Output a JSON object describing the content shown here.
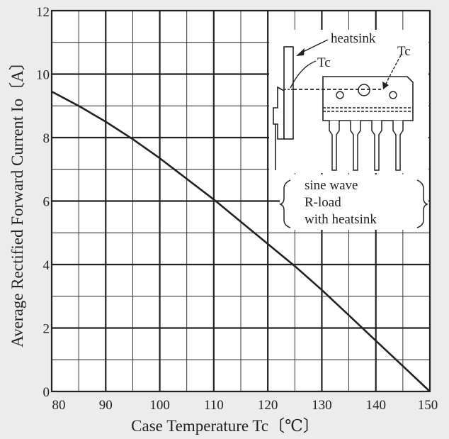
{
  "chart_data": {
    "type": "line",
    "xlabel": "Case Temperature Tc〔℃〕",
    "ylabel": "Average Rectified Forward Current Io〔A〕",
    "xlim": [
      80,
      150
    ],
    "ylim": [
      0,
      12
    ],
    "x_ticks": [
      80,
      90,
      100,
      110,
      120,
      130,
      140,
      150
    ],
    "y_ticks": [
      0,
      2,
      4,
      6,
      8,
      10,
      12
    ],
    "x_tick_labels": [
      "80",
      "90",
      "100",
      "110",
      "120",
      "130",
      "140",
      "150"
    ],
    "y_tick_labels": [
      "0",
      "2",
      "4",
      "6",
      "8",
      "10",
      "12"
    ],
    "grid": true,
    "minor_gridlines": {
      "x_step": 5,
      "y_step": 1
    },
    "series": [
      {
        "x": [
          80,
          85,
          90,
          95,
          100,
          105,
          110,
          115,
          120,
          125,
          130,
          135,
          140,
          145,
          150
        ],
        "y": [
          9.45,
          9.0,
          8.5,
          7.95,
          7.35,
          6.7,
          6.05,
          5.35,
          4.65,
          3.95,
          3.2,
          2.4,
          1.6,
          0.8,
          0.0
        ]
      }
    ],
    "inset": {
      "labels": {
        "heatsink": "heatsink",
        "tc_left": "Tc",
        "tc_right": "Tc"
      },
      "conditions": [
        "sine wave",
        "R-load",
        "with heatsink"
      ]
    },
    "colors": {
      "background": "#ececec",
      "plot_area": "#ffffff",
      "line": "#222222",
      "grid": "#222222"
    }
  }
}
